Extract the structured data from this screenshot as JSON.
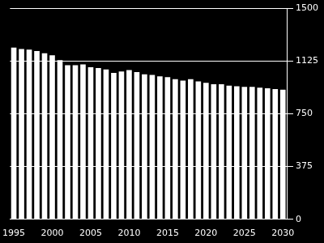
{
  "chart_data": {
    "type": "bar",
    "categories": [
      1995,
      null,
      null,
      null,
      null,
      2000,
      null,
      null,
      null,
      null,
      2005,
      null,
      null,
      null,
      null,
      2010,
      null,
      null,
      null,
      null,
      2015,
      null,
      null,
      null,
      null,
      2020,
      null,
      null,
      null,
      null,
      2025,
      null,
      null,
      null,
      null,
      2030
    ],
    "values": [
      1220,
      1210,
      1205,
      1195,
      1180,
      1165,
      1130,
      1095,
      1095,
      1100,
      1080,
      1075,
      1065,
      1040,
      1050,
      1060,
      1045,
      1030,
      1025,
      1015,
      1010,
      995,
      985,
      995,
      980,
      970,
      960,
      960,
      950,
      945,
      940,
      940,
      935,
      930,
      925,
      920
    ],
    "color": "#ffffff",
    "ylim": [
      0,
      1500
    ],
    "yticks": [
      0,
      375,
      750,
      1125,
      1500
    ],
    "grid": true
  }
}
